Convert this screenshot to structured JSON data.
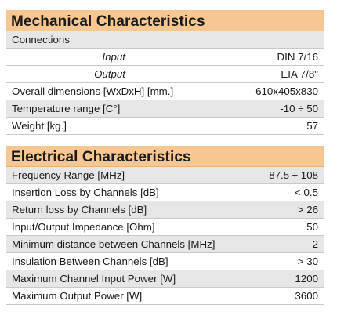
{
  "mechanical": {
    "title": "Mechanical Characteristics",
    "rows": [
      {
        "label": "Connections",
        "value": "",
        "shaded": true,
        "sub": false
      },
      {
        "label": "Input",
        "value": "DIN 7/16",
        "shaded": false,
        "sub": true
      },
      {
        "label": "Output",
        "value": "EIA 7/8\"",
        "shaded": false,
        "sub": true
      },
      {
        "label": "Overall dimensions [WxDxH] [mm.]",
        "value": "610x405x830",
        "shaded": false,
        "sub": false
      },
      {
        "label": "Temperature range [C°]",
        "value": "-10 ÷ 50",
        "shaded": true,
        "sub": false
      },
      {
        "label": "Weight [kg.]",
        "value": "57",
        "shaded": false,
        "sub": false
      }
    ]
  },
  "electrical": {
    "title": "Electrical Characteristics",
    "rows": [
      {
        "label": "Frequency Range [MHz]",
        "value": "87.5 ÷ 108",
        "shaded": true,
        "sub": false
      },
      {
        "label": "Insertion Loss by Channels [dB]",
        "value": "< 0.5",
        "shaded": false,
        "sub": false
      },
      {
        "label": "Return loss by Channels [dB]",
        "value": "> 26",
        "shaded": true,
        "sub": false
      },
      {
        "label": "Input/Output Impedance [Ohm]",
        "value": "50",
        "shaded": false,
        "sub": false
      },
      {
        "label": "Minimum distance between Channels [MHz]",
        "value": "2",
        "shaded": true,
        "sub": false
      },
      {
        "label": "Insulation Between Channels [dB]",
        "value": "> 30",
        "shaded": false,
        "sub": false
      },
      {
        "label": "Maximum Channel Input Power [W]",
        "value": "1200",
        "shaded": true,
        "sub": false
      },
      {
        "label": "Maximum Output Power [W]",
        "value": "3600",
        "shaded": false,
        "sub": false
      }
    ]
  }
}
